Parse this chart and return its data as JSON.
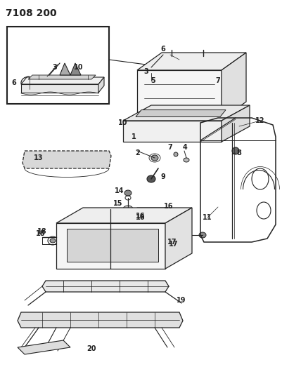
{
  "title": "7108 200",
  "bg": "#ffffff",
  "lc": "#222222",
  "fig_w": 4.28,
  "fig_h": 5.33,
  "dpi": 100,
  "label_fs": 7,
  "title_fs": 10
}
